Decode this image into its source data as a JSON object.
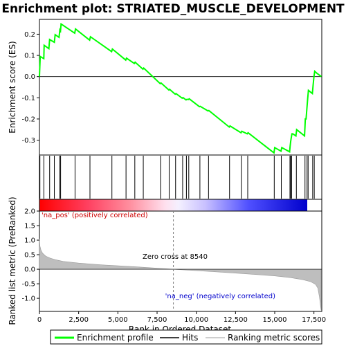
{
  "chart_data": {
    "type": "line",
    "title": "Enrichment plot: STRIATED_MUSCLE_DEVELOPMENT",
    "top_panel": {
      "ylabel": "Enrichment score (ES)",
      "ylim": [
        -0.37,
        0.27
      ],
      "yticks": [
        -0.3,
        -0.2,
        -0.1,
        0.0,
        0.1,
        0.2
      ],
      "ytick_labels": [
        "-0.3",
        "-0.2",
        "-0.1",
        "0.0",
        "0.1",
        "0.2"
      ],
      "grid": false,
      "series": [
        {
          "name": "Enrichment profile",
          "color": "#00ff00",
          "x": [
            0,
            50,
            280,
            300,
            600,
            650,
            950,
            1000,
            1250,
            1300,
            1340,
            1380,
            2250,
            2300,
            3200,
            3250,
            4600,
            4650,
            5500,
            5550,
            6050,
            6100,
            6600,
            6650,
            7700,
            7750,
            8250,
            8300,
            8650,
            8700,
            9100,
            9150,
            9350,
            9400,
            9500,
            9550,
            10200,
            10250,
            10750,
            10800,
            12100,
            12150,
            12850,
            12900,
            13250,
            13300,
            14950,
            15000,
            15400,
            15450,
            15950,
            15980,
            16020,
            16050,
            16100,
            16150,
            16350,
            16400,
            16900,
            16950,
            17000,
            17050,
            17100,
            17150,
            17400,
            17450,
            17500,
            17550,
            17700,
            17980
          ],
          "y": [
            0.0,
            0.095,
            0.085,
            0.148,
            0.132,
            0.175,
            0.162,
            0.198,
            0.185,
            0.22,
            0.215,
            0.248,
            0.205,
            0.225,
            0.172,
            0.188,
            0.118,
            0.13,
            0.078,
            0.087,
            0.062,
            0.068,
            0.035,
            0.04,
            -0.033,
            -0.03,
            -0.063,
            -0.06,
            -0.083,
            -0.08,
            -0.102,
            -0.099,
            -0.11,
            -0.107,
            -0.108,
            -0.105,
            -0.142,
            -0.14,
            -0.162,
            -0.16,
            -0.238,
            -0.233,
            -0.265,
            -0.258,
            -0.27,
            -0.265,
            -0.36,
            -0.335,
            -0.352,
            -0.335,
            -0.355,
            -0.33,
            -0.305,
            -0.29,
            -0.27,
            -0.27,
            -0.28,
            -0.25,
            -0.28,
            -0.2,
            -0.2,
            -0.15,
            -0.105,
            -0.065,
            -0.08,
            -0.04,
            0.0,
            0.025,
            0.015,
            0.0
          ]
        }
      ]
    },
    "hits_panel": {
      "series_name": "Hits",
      "hit_positions": [
        30,
        280,
        650,
        950,
        1300,
        1350,
        2270,
        3220,
        4620,
        5520,
        6080,
        6620,
        7720,
        8270,
        8680,
        9130,
        9370,
        9520,
        10230,
        10780,
        12120,
        12870,
        13280,
        14970,
        15420,
        15970,
        16010,
        16080,
        16380,
        16930,
        17060,
        17130,
        17420,
        17520
      ]
    },
    "bottom_panel": {
      "ylabel": "Ranked list metric (PreRanked)",
      "xlabel": "Rank in Ordered Dataset",
      "ylim": [
        -1.45,
        2.0
      ],
      "yticks": [
        -1.0,
        -0.5,
        0.0,
        0.5,
        1.0,
        1.5,
        2.0
      ],
      "ytick_labels": [
        "-1.0",
        "-0.5",
        "0.0",
        "0.5",
        "1.0",
        "1.5",
        "2.0"
      ],
      "series_name": "Ranking metric scores",
      "metric_profile": {
        "x": [
          0,
          30,
          100,
          200,
          400,
          700,
          1000,
          1500,
          2500,
          4000,
          6000,
          8540,
          11000,
          13000,
          15000,
          16000,
          16800,
          17300,
          17600,
          17750,
          17850,
          17950
        ],
        "y": [
          1.05,
          0.8,
          0.65,
          0.55,
          0.45,
          0.38,
          0.33,
          0.27,
          0.21,
          0.15,
          0.09,
          0.0,
          -0.08,
          -0.15,
          -0.23,
          -0.29,
          -0.36,
          -0.43,
          -0.52,
          -0.65,
          -0.95,
          -1.4
        ]
      },
      "zero_cross_label": "Zero cross at 8540",
      "zero_cross": 8540,
      "pos_label": "'na_pos' (positively correlated)",
      "neg_label": "'na_neg' (negatively correlated)"
    },
    "x_axis": {
      "xlim": [
        0,
        18000
      ],
      "xticks": [
        0,
        2500,
        5000,
        7500,
        10000,
        12500,
        15000,
        17500
      ],
      "xtick_labels": [
        "0",
        "2,500",
        "5,000",
        "7,500",
        "10,000",
        "12,500",
        "15,000",
        "17,500"
      ]
    },
    "legend": {
      "placement": "bottom",
      "entries": [
        {
          "label": "Enrichment profile",
          "color": "#00ff00"
        },
        {
          "label": "Hits",
          "color": "#000000"
        },
        {
          "label": "Ranking metric scores",
          "color": "#bebebe"
        }
      ]
    },
    "colors": {
      "profile": "#00ff00",
      "pos_text": "#cc0000",
      "neg_text": "#0000cc",
      "metric_fill": "#bebebe",
      "zero_line": "#808080"
    }
  }
}
